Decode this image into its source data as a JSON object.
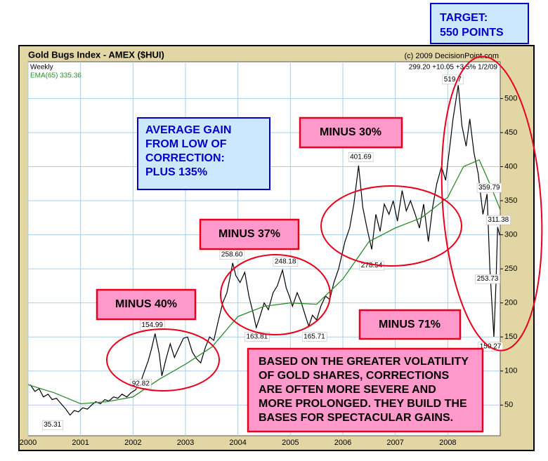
{
  "chart_data": {
    "type": "line",
    "title": "Gold Bugs Index - AMEX ($HUI)",
    "source": "(c) 2009 DecisionPoint.com",
    "period": "Weekly",
    "last_quote": "299.20 +10.05 +3.5% 1/2/09",
    "xlim": [
      2000,
      2009
    ],
    "xticks": [
      2000,
      2001,
      2002,
      2003,
      2004,
      2005,
      2006,
      2007,
      2008
    ],
    "ylim": [
      5,
      554
    ],
    "yticks": [
      50,
      100,
      150,
      200,
      250,
      300,
      350,
      400,
      450,
      500
    ],
    "grid": true,
    "series": [
      {
        "color": "#000000",
        "x": [
          2000.04,
          2000.13,
          2000.21,
          2000.29,
          2000.38,
          2000.46,
          2000.54,
          2000.63,
          2000.71,
          2000.8,
          2000.88,
          2000.96,
          2001.04,
          2001.13,
          2001.21,
          2001.29,
          2001.38,
          2001.46,
          2001.54,
          2001.63,
          2001.71,
          2001.79,
          2001.88,
          2001.96,
          2002.04,
          2002.13,
          2002.21,
          2002.29,
          2002.35,
          2002.42,
          2002.5,
          2002.55,
          2002.63,
          2002.71,
          2002.79,
          2002.88,
          2002.96,
          2003.04,
          2003.13,
          2003.21,
          2003.29,
          2003.38,
          2003.46,
          2003.54,
          2003.63,
          2003.71,
          2003.79,
          2003.85,
          2003.9,
          2003.96,
          2004.04,
          2004.13,
          2004.21,
          2004.29,
          2004.35,
          2004.42,
          2004.5,
          2004.58,
          2004.67,
          2004.75,
          2004.85,
          2004.92,
          2004.98,
          2005.04,
          2005.13,
          2005.21,
          2005.29,
          2005.35,
          2005.42,
          2005.5,
          2005.58,
          2005.67,
          2005.75,
          2005.83,
          2005.92,
          2005.98,
          2006.04,
          2006.13,
          2006.21,
          2006.3,
          2006.38,
          2006.46,
          2006.55,
          2006.63,
          2006.71,
          2006.79,
          2006.88,
          2006.96,
          2007.04,
          2007.13,
          2007.21,
          2007.29,
          2007.38,
          2007.46,
          2007.54,
          2007.63,
          2007.71,
          2007.79,
          2007.88,
          2007.96,
          2008.04,
          2008.1,
          2008.2,
          2008.27,
          2008.35,
          2008.42,
          2008.5,
          2008.58,
          2008.67,
          2008.75,
          2008.8,
          2008.84,
          2008.88,
          2008.92,
          2008.95,
          2008.99
        ],
        "values": [
          80,
          70,
          74,
          62,
          66,
          58,
          60,
          52,
          45,
          35.31,
          42,
          40,
          46,
          44,
          50,
          55,
          52,
          58,
          56,
          62,
          60,
          66,
          62,
          68,
          72,
          80,
          98,
          115,
          132,
          154.99,
          125,
          92.82,
          118,
          140,
          120,
          135,
          148,
          150,
          128,
          118,
          112,
          135,
          150,
          145,
          175,
          200,
          215,
          238,
          258.6,
          240,
          230,
          245,
          210,
          185,
          163.81,
          180,
          200,
          190,
          215,
          225,
          248.18,
          222,
          210,
          195,
          215,
          200,
          180,
          165.71,
          182,
          175,
          195,
          210,
          205,
          230,
          250,
          270,
          290,
          310,
          345,
          401.69,
          340,
          310,
          278.54,
          330,
          305,
          345,
          330,
          350,
          320,
          365,
          335,
          350,
          330,
          310,
          345,
          290,
          340,
          375,
          400,
          380,
          430,
          470,
          519.7,
          460,
          430,
          470,
          420,
          390,
          330,
          359.79,
          253.73,
          200,
          150.27,
          230,
          311.38,
          299.2
        ]
      },
      {
        "name": "EMA(65) 335.36",
        "color": "#2e8b2e",
        "x": [
          2000,
          2000.5,
          2001,
          2001.5,
          2002,
          2002.5,
          2003,
          2003.5,
          2004,
          2004.5,
          2005,
          2005.5,
          2006,
          2006.5,
          2007,
          2007.5,
          2008,
          2008.3,
          2008.6,
          2008.8,
          2009
        ],
        "values": [
          80,
          68,
          52,
          55,
          62,
          88,
          110,
          135,
          180,
          195,
          200,
          198,
          235,
          290,
          310,
          325,
          355,
          400,
          410,
          375,
          337
        ]
      }
    ],
    "point_labels": {
      "x": [
        2000.8,
        2002.55,
        2002.42,
        2003.9,
        2004.35,
        2004.85,
        2005.35,
        2006.55,
        2006.3,
        2008.2,
        2008.75,
        2008.95,
        2008.8,
        2008.88
      ],
      "values": [
        35.31,
        92.82,
        154.99,
        258.6,
        163.81,
        248.18,
        165.71,
        278.54,
        401.69,
        519.7,
        359.79,
        311.38,
        253.73,
        150.27
      ],
      "value_labels": [
        "35.31",
        "92.82",
        "154.99",
        "258.60",
        "163.81",
        "248.18",
        "165.71",
        "278.54",
        "401.69",
        "519.7",
        "359.79",
        "311.38",
        "253.73",
        "150.27"
      ]
    },
    "annotations": {
      "target": [
        "TARGET:",
        "550  POINTS"
      ],
      "average_gain": [
        "AVERAGE GAIN",
        "FROM LOW OF",
        "CORRECTION:",
        "PLUS 135%"
      ],
      "minus_30": "MINUS 30%",
      "minus_37": "MINUS 37%",
      "minus_40": "MINUS 40%",
      "minus_71": "MINUS 71%",
      "note": [
        "BASED ON THE GREATER VOLATILITY",
        "OF GOLD SHARES, CORRECTIONS",
        "ARE OFTEN MORE SEVERE AND",
        "MORE PROLONGED. THEY BUILD THE",
        "BASES FOR SPECTACULAR GAINS."
      ]
    }
  }
}
